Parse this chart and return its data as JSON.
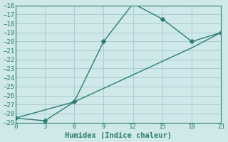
{
  "xlabel": "Humidex (Indice chaleur)",
  "line1_x": [
    0,
    3,
    6,
    9,
    12,
    15,
    18,
    21
  ],
  "line1_y": [
    -28.5,
    -28.8,
    -26.7,
    -20.0,
    -15.8,
    -17.5,
    -20.0,
    -19.0
  ],
  "line2_x": [
    0,
    6,
    9,
    12,
    15,
    18,
    21
  ],
  "line2_y": [
    -28.5,
    -26.7,
    -25.2,
    -23.7,
    -22.2,
    -20.7,
    -19.0
  ],
  "color": "#2d7d6e",
  "bg_color": "#cfe8ea",
  "grid_color": "#aacdd0",
  "xlim": [
    0,
    21
  ],
  "ylim_bottom": -29,
  "ylim_top": -16,
  "xticks": [
    0,
    3,
    6,
    9,
    12,
    15,
    18,
    21
  ],
  "yticks": [
    -16,
    -17,
    -18,
    -19,
    -20,
    -21,
    -22,
    -23,
    -24,
    -25,
    -26,
    -27,
    -28,
    -29
  ],
  "marker": "D",
  "markersize": 3,
  "linewidth": 1.0
}
